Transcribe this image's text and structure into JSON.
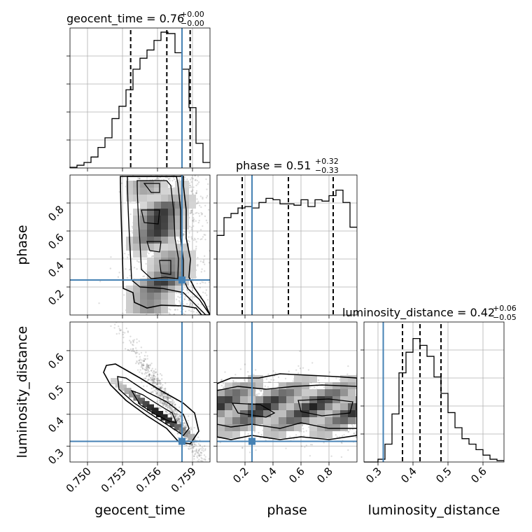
{
  "chart_data": {
    "type": "corner",
    "parameters": [
      "geocent_time",
      "phase",
      "luminosity_distance"
    ],
    "truths": {
      "geocent_time": 0.7581,
      "phase": 0.25,
      "luminosity_distance": 0.315
    },
    "truth_color": "#4682b4",
    "grid": true,
    "panels": [
      {
        "type": "histogram",
        "param": "geocent_time",
        "title": "geocent_time = 0.76",
        "title_sup": "+0.00",
        "title_sub": "−0.00",
        "xlim": [
          0.7485,
          0.7605
        ],
        "ylim": [
          0,
          1.0
        ],
        "edges": [
          0.7485,
          0.7491,
          0.7497,
          0.7503,
          0.7509,
          0.7515,
          0.7521,
          0.7527,
          0.7533,
          0.7539,
          0.7545,
          0.7551,
          0.7557,
          0.7563,
          0.7569,
          0.7575,
          0.7581,
          0.7587,
          0.7593,
          0.7599,
          0.7605
        ],
        "counts": [
          0.005,
          0.02,
          0.04,
          0.08,
          0.15,
          0.22,
          0.36,
          0.45,
          0.57,
          0.72,
          0.8,
          0.86,
          0.93,
          0.99,
          0.98,
          0.84,
          0.72,
          0.44,
          0.18,
          0.04
        ],
        "quantiles": [
          0.7537,
          0.7568,
          0.7588
        ]
      },
      {
        "type": "histogram",
        "param": "phase",
        "title": "phase = 0.51",
        "title_sup": "+0.32",
        "title_sub": "−0.33",
        "xlim": [
          0.0,
          1.0
        ],
        "ylim": [
          0,
          1.0
        ],
        "edges": [
          0.0,
          0.05,
          0.1,
          0.15,
          0.2,
          0.25,
          0.3,
          0.35,
          0.4,
          0.45,
          0.5,
          0.55,
          0.6,
          0.65,
          0.7,
          0.75,
          0.8,
          0.85,
          0.9,
          0.95,
          1.0
        ],
        "counts": [
          0.58,
          0.71,
          0.74,
          0.78,
          0.79,
          0.78,
          0.82,
          0.85,
          0.84,
          0.81,
          0.81,
          0.8,
          0.84,
          0.79,
          0.84,
          0.83,
          0.87,
          0.91,
          0.82,
          0.64
        ],
        "quantiles": [
          0.18,
          0.51,
          0.83
        ]
      },
      {
        "type": "histogram",
        "param": "luminosity_distance",
        "title": "luminosity_distance = 0.42",
        "title_sup": "+0.06",
        "title_sub": "−0.05",
        "xlim": [
          0.26,
          0.66
        ],
        "ylim": [
          0,
          1.0
        ],
        "edges": [
          0.26,
          0.28,
          0.3,
          0.32,
          0.34,
          0.36,
          0.38,
          0.4,
          0.42,
          0.44,
          0.46,
          0.48,
          0.5,
          0.52,
          0.54,
          0.56,
          0.58,
          0.6,
          0.62,
          0.64,
          0.66
        ],
        "counts": [
          0.0,
          0.0,
          0.02,
          0.13,
          0.35,
          0.65,
          0.8,
          0.9,
          0.85,
          0.77,
          0.62,
          0.5,
          0.36,
          0.25,
          0.17,
          0.13,
          0.09,
          0.05,
          0.02,
          0.01
        ],
        "quantiles": [
          0.37,
          0.42,
          0.48
        ]
      },
      {
        "type": "2d_density",
        "x": "geocent_time",
        "y": "phase",
        "xlim": [
          0.7485,
          0.7605
        ],
        "ylim": [
          0.0,
          1.0
        ]
      },
      {
        "type": "2d_density",
        "x": "geocent_time",
        "y": "luminosity_distance",
        "xlim": [
          0.7485,
          0.7605
        ],
        "ylim": [
          0.25,
          0.69
        ]
      },
      {
        "type": "2d_density",
        "x": "phase",
        "y": "luminosity_distance",
        "xlim": [
          0.0,
          1.0
        ],
        "ylim": [
          0.25,
          0.69
        ]
      }
    ],
    "ticks": {
      "geocent_time": [
        "0.750",
        "0.753",
        "0.756",
        "0.759"
      ],
      "phase": [
        "0.2",
        "0.4",
        "0.6",
        "0.8"
      ],
      "luminosity_distance": [
        "0.3",
        "0.4",
        "0.5",
        "0.6"
      ]
    },
    "labels": {
      "geocent_time": "geocent_time",
      "phase": "phase",
      "luminosity_distance": "luminosity_distance"
    }
  }
}
